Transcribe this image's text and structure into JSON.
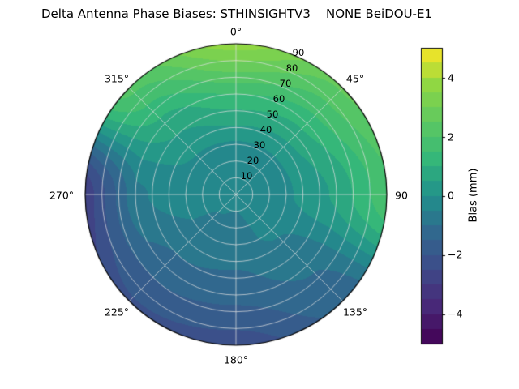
{
  "chart_data": {
    "type": "polar_contour",
    "title": "Delta Antenna Phase Biases: STHINSIGHTV3    NONE BeiDOU-E1",
    "angular_tick_labels": [
      "0°",
      "45°",
      "90",
      "135°",
      "180°",
      "225°",
      "270°",
      "315°"
    ],
    "radial_tick_labels": [
      "10",
      "20",
      "30",
      "40",
      "50",
      "60",
      "70",
      "80",
      "90"
    ],
    "radial_range": [
      0,
      90
    ],
    "level_step": 0.5,
    "colormap": "viridis",
    "grid_on": true,
    "colorbar": {
      "label": "Bias (mm)",
      "tick_labels": [
        "4",
        "2",
        "0",
        "−2",
        "−4"
      ],
      "tick_values": [
        4,
        2,
        0,
        -2,
        -4
      ],
      "min": -5,
      "max": 5
    },
    "viridis_stops": [
      [
        0.0,
        68,
        1,
        84
      ],
      [
        0.125,
        72,
        40,
        120
      ],
      [
        0.25,
        62,
        74,
        137
      ],
      [
        0.375,
        49,
        104,
        142
      ],
      [
        0.5,
        33,
        145,
        140
      ],
      [
        0.625,
        53,
        183,
        121
      ],
      [
        0.75,
        94,
        201,
        98
      ],
      [
        0.875,
        144,
        215,
        67
      ],
      [
        1.0,
        253,
        231,
        37
      ]
    ],
    "grid": {
      "azimuth_deg": [
        0,
        45,
        90,
        135,
        180,
        225,
        270,
        315
      ],
      "radius": [
        0,
        30,
        60,
        90
      ],
      "bias_values_mm": [
        [
          -0.4,
          -0.1,
          1.5,
          3.8
        ],
        [
          -0.4,
          -0.1,
          1.2,
          2.6
        ],
        [
          -0.4,
          -0.1,
          0.6,
          1.9
        ],
        [
          -0.4,
          -0.4,
          -0.9,
          -1.4
        ],
        [
          -0.4,
          -0.7,
          -1.3,
          -2.3
        ],
        [
          -0.4,
          -0.6,
          -1.2,
          -2.1
        ],
        [
          -0.4,
          -0.2,
          -0.6,
          -2.9
        ],
        [
          -0.4,
          -0.1,
          0.8,
          2.2
        ]
      ]
    }
  }
}
